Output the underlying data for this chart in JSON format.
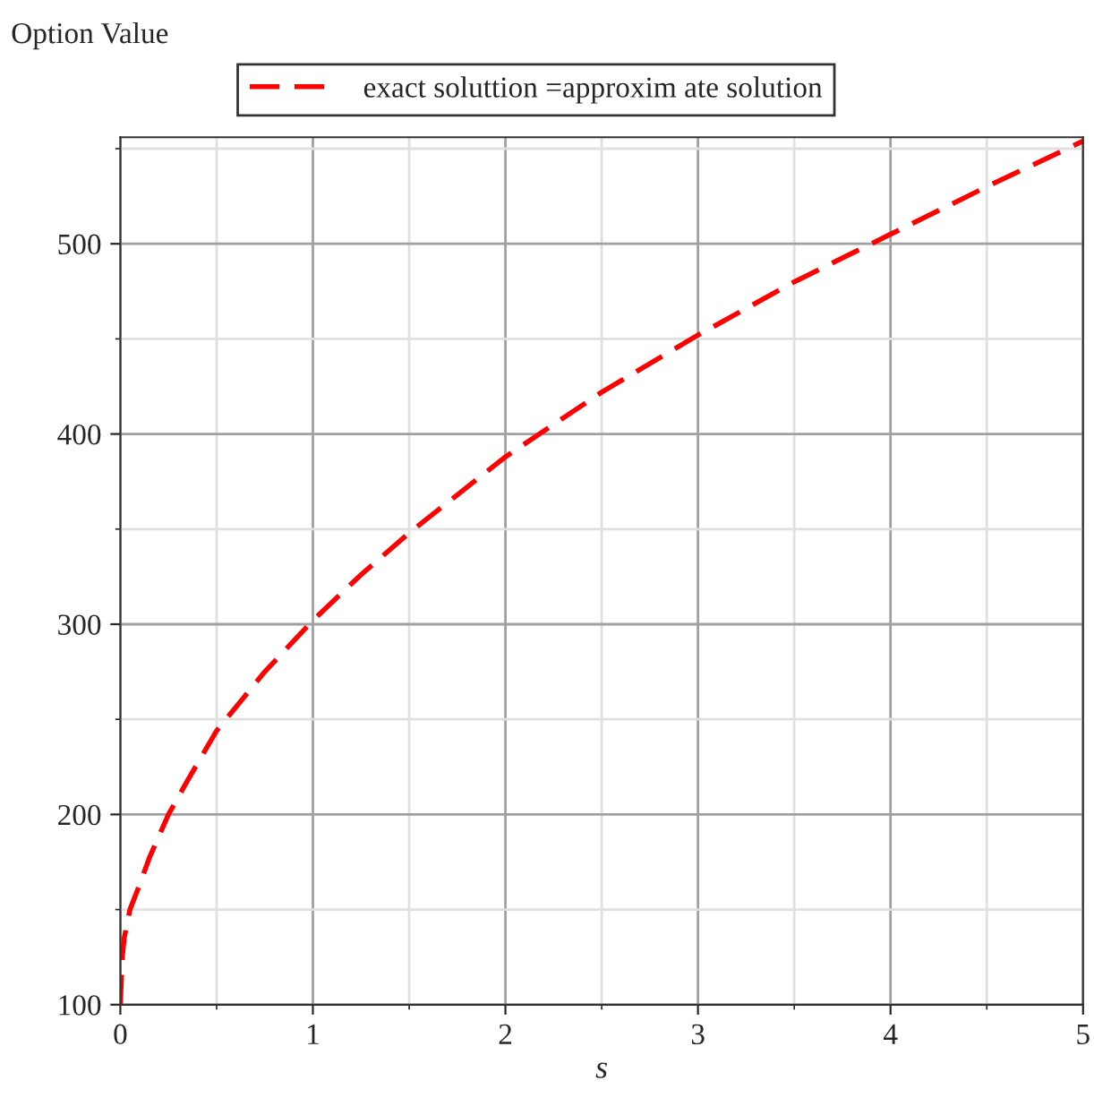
{
  "chart_data": {
    "type": "line",
    "ylabel": "Option Value",
    "xlabel": "s",
    "xlim": [
      0,
      5
    ],
    "ylim": [
      100,
      556
    ],
    "xticks": [
      0,
      {
        "value": 0.5,
        "label": null
      },
      1,
      {
        "value": 1.5,
        "label": null
      },
      2,
      {
        "value": 2.5,
        "label": null
      },
      3,
      {
        "value": 3.5,
        "label": null
      },
      4,
      {
        "value": 4.5,
        "label": null
      },
      5
    ],
    "yticks": [
      100,
      {
        "value": 150,
        "label": null
      },
      200,
      {
        "value": 250,
        "label": null
      },
      300,
      {
        "value": 350,
        "label": null
      },
      400,
      {
        "value": 450,
        "label": null
      },
      500,
      {
        "value": 550,
        "label": null
      }
    ],
    "grid": true,
    "legend": "top",
    "line_style": "dashed",
    "marker": "none",
    "series": [
      {
        "name": "exact soluttion =approxim ate solution",
        "color": "#ff0000",
        "x": [
          0,
          0.01,
          0.02,
          0.05,
          0.1,
          0.15,
          0.25,
          0.35,
          0.5,
          0.75,
          1,
          1.25,
          1.5,
          1.75,
          2,
          2.5,
          3,
          3.5,
          4,
          4.5,
          5
        ],
        "values": [
          100,
          125,
          135,
          150,
          163,
          177,
          200,
          218,
          244,
          275,
          302,
          326,
          348,
          368,
          388,
          422,
          452,
          480,
          505,
          530,
          554
        ]
      }
    ]
  }
}
